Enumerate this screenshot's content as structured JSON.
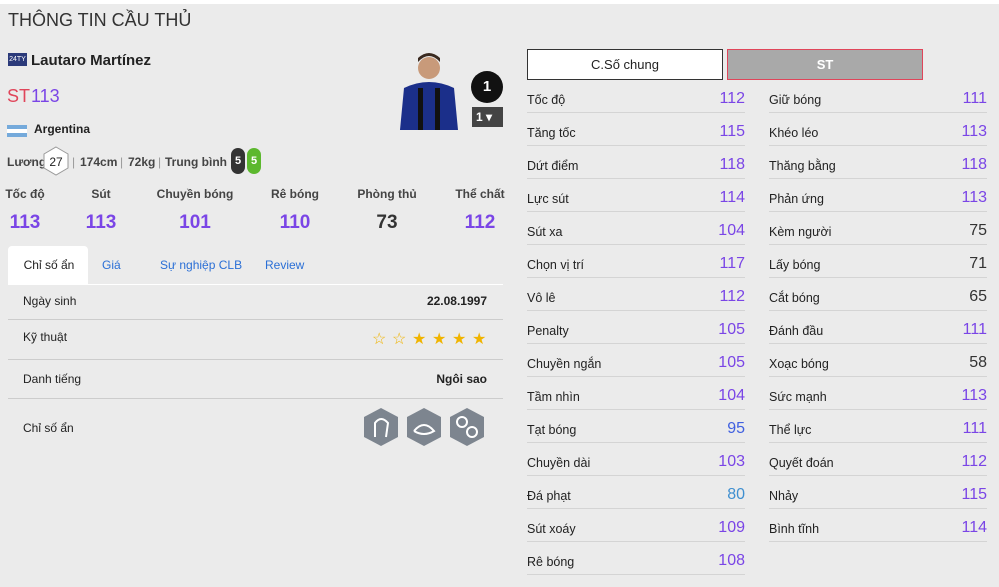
{
  "header": {
    "title": "THÔNG TIN CẦU THỦ"
  },
  "player": {
    "season": "24TY",
    "name": "Lautaro Martínez",
    "position": "ST",
    "rating": 113,
    "nation": "Argentina",
    "salary_label": "Lương",
    "salary": 27,
    "height": "174cm",
    "weight": "72kg",
    "body": "Trung bình",
    "feet": [
      5,
      5
    ],
    "upgrade": 1,
    "level": 1
  },
  "summary": [
    {
      "name": "Tốc độ",
      "value": 113
    },
    {
      "name": "Sút",
      "value": 113
    },
    {
      "name": "Chuyền bóng",
      "value": 101
    },
    {
      "name": "Rê bóng",
      "value": 110
    },
    {
      "name": "Phòng thủ",
      "value": 73
    },
    {
      "name": "Thể chất",
      "value": 112
    }
  ],
  "tabs": [
    "Chỉ số ẩn",
    "Giá",
    "Sự nghiệp CLB",
    "Review"
  ],
  "info": {
    "birth_label": "Ngày sinh",
    "birth": "22.08.1997",
    "skill_label": "Kỹ thuật",
    "skill_stars": {
      "filled": 4,
      "total": 6
    },
    "fame_label": "Danh tiếng",
    "fame": "Ngôi sao",
    "hidden_label": "Chỉ số ẩn"
  },
  "buttons": [
    "C.Số chung",
    "ST"
  ],
  "stats_left": [
    {
      "name": "Tốc độ",
      "value": 112
    },
    {
      "name": "Tăng tốc",
      "value": 115
    },
    {
      "name": "Dứt điểm",
      "value": 118
    },
    {
      "name": "Lực sút",
      "value": 114
    },
    {
      "name": "Sút xa",
      "value": 104
    },
    {
      "name": "Chọn vị trí",
      "value": 117
    },
    {
      "name": "Vô lê",
      "value": 112
    },
    {
      "name": "Penalty",
      "value": 105
    },
    {
      "name": "Chuyền ngắn",
      "value": 105
    },
    {
      "name": "Tầm nhìn",
      "value": 104
    },
    {
      "name": "Tạt bóng",
      "value": 95
    },
    {
      "name": "Chuyền dài",
      "value": 103
    },
    {
      "name": "Đá phạt",
      "value": 80
    },
    {
      "name": "Sút xoáy",
      "value": 109
    },
    {
      "name": "Rê bóng",
      "value": 108
    }
  ],
  "stats_right": [
    {
      "name": "Giữ bóng",
      "value": 111
    },
    {
      "name": "Khéo léo",
      "value": 113
    },
    {
      "name": "Thăng bằng",
      "value": 118
    },
    {
      "name": "Phản ứng",
      "value": 113
    },
    {
      "name": "Kèm người",
      "value": 75
    },
    {
      "name": "Lấy bóng",
      "value": 71
    },
    {
      "name": "Cắt bóng",
      "value": 65
    },
    {
      "name": "Đánh đầu",
      "value": 111
    },
    {
      "name": "Xoạc bóng",
      "value": 58
    },
    {
      "name": "Sức mạnh",
      "value": 113
    },
    {
      "name": "Thể lực",
      "value": 111
    },
    {
      "name": "Quyết đoán",
      "value": 112
    },
    {
      "name": "Nhảy",
      "value": 115
    },
    {
      "name": "Bình tĩnh",
      "value": 114
    }
  ]
}
